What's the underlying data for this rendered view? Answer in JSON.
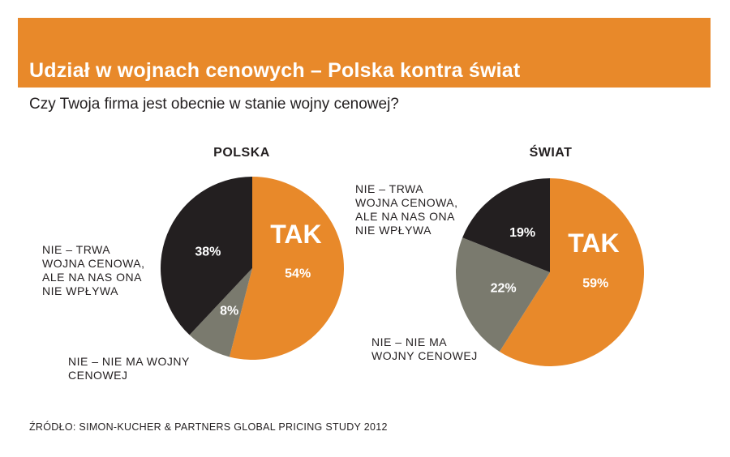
{
  "banner": {
    "title": "Udział w wojnach cenowych – Polska kontra świat"
  },
  "subtitle": "Czy Twoja firma jest obecnie w stanie wojny cenowej?",
  "source": "ŹRÓDŁO: SIMON-KUCHER & PARTNERS GLOBAL PRICING STUDY 2012",
  "colors": {
    "tak": "#e8892a",
    "nie_trwa": "#231f20",
    "nie_nie_ma": "#7a7a6e",
    "text_on_slice": "#ffffff"
  },
  "chart_data": [
    {
      "type": "pie",
      "title": "POLSKA",
      "slices": [
        {
          "key": "tak",
          "label": "TAK",
          "value": 54,
          "value_label": "54%",
          "color": "#e8892a"
        },
        {
          "key": "nie_nie_ma",
          "label": [
            "NIE – NIE MA WOJNY",
            "CENOWEJ"
          ],
          "value": 8,
          "value_label": "8%",
          "color": "#7a7a6e"
        },
        {
          "key": "nie_trwa",
          "label": [
            "NIE – TRWA",
            "WOJNA CENOWA,",
            "ALE NA NAS ONA",
            "NIE WPŁYWA"
          ],
          "value": 38,
          "value_label": "38%",
          "color": "#231f20"
        }
      ]
    },
    {
      "type": "pie",
      "title": "ŚWIAT",
      "slices": [
        {
          "key": "tak",
          "label": "TAK",
          "value": 59,
          "value_label": "59%",
          "color": "#e8892a"
        },
        {
          "key": "nie_nie_ma",
          "label": [
            "NIE – NIE MA",
            "WOJNY CENOWEJ"
          ],
          "value": 22,
          "value_label": "22%",
          "color": "#7a7a6e"
        },
        {
          "key": "nie_trwa",
          "label": [
            "NIE – TRWA",
            "WOJNA CENOWA,",
            "ALE NA NAS ONA",
            "NIE WPŁYWA"
          ],
          "value": 19,
          "value_label": "19%",
          "color": "#231f20"
        }
      ]
    }
  ]
}
